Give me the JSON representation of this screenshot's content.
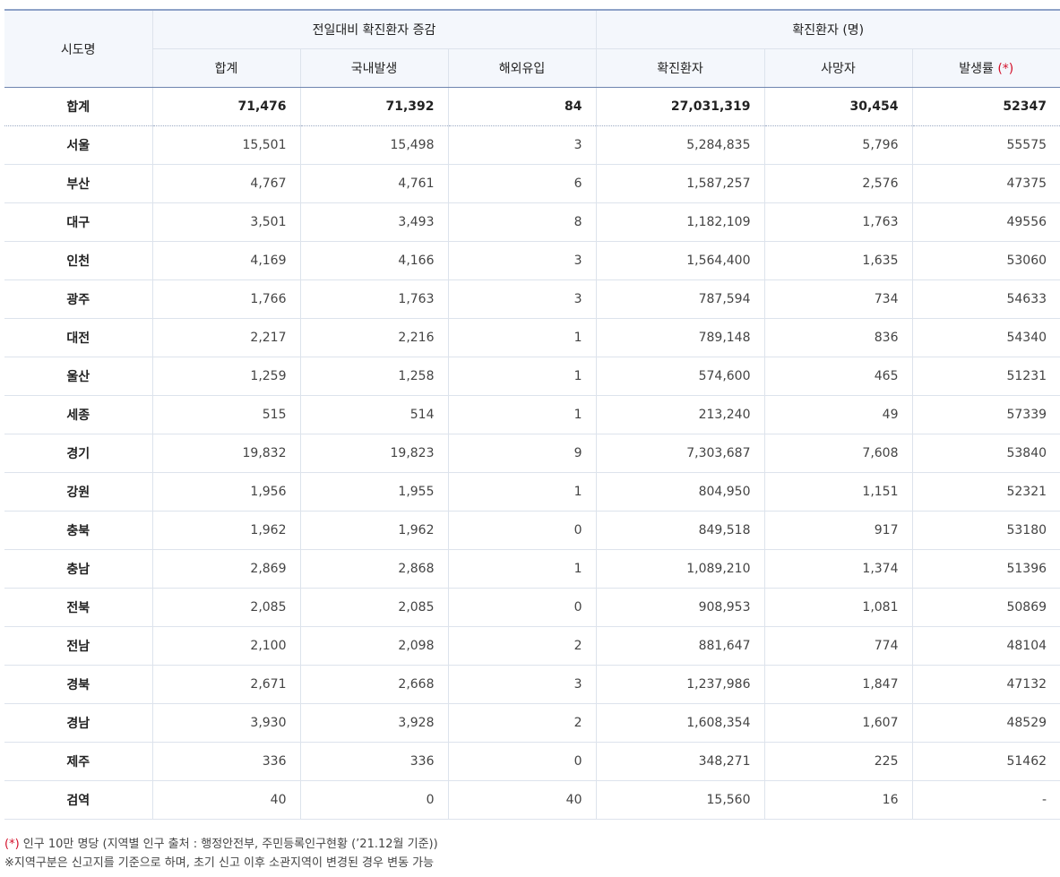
{
  "header": {
    "region": "시도명",
    "group_change": "전일대비 확진환자 증감",
    "group_confirmed": "확진환자 (명)",
    "sum": "합계",
    "domestic": "국내발생",
    "imported": "해외유입",
    "confirmed": "확진환자",
    "deaths": "사망자",
    "incidence": "발생률",
    "incidence_mark": "(*)"
  },
  "total": {
    "region": "합계",
    "sum": "71,476",
    "domestic": "71,392",
    "imported": "84",
    "confirmed": "27,031,319",
    "deaths": "30,454",
    "incidence": "52347"
  },
  "rows": [
    {
      "region": "서울",
      "sum": "15,501",
      "domestic": "15,498",
      "imported": "3",
      "confirmed": "5,284,835",
      "deaths": "5,796",
      "incidence": "55575"
    },
    {
      "region": "부산",
      "sum": "4,767",
      "domestic": "4,761",
      "imported": "6",
      "confirmed": "1,587,257",
      "deaths": "2,576",
      "incidence": "47375"
    },
    {
      "region": "대구",
      "sum": "3,501",
      "domestic": "3,493",
      "imported": "8",
      "confirmed": "1,182,109",
      "deaths": "1,763",
      "incidence": "49556"
    },
    {
      "region": "인천",
      "sum": "4,169",
      "domestic": "4,166",
      "imported": "3",
      "confirmed": "1,564,400",
      "deaths": "1,635",
      "incidence": "53060"
    },
    {
      "region": "광주",
      "sum": "1,766",
      "domestic": "1,763",
      "imported": "3",
      "confirmed": "787,594",
      "deaths": "734",
      "incidence": "54633"
    },
    {
      "region": "대전",
      "sum": "2,217",
      "domestic": "2,216",
      "imported": "1",
      "confirmed": "789,148",
      "deaths": "836",
      "incidence": "54340"
    },
    {
      "region": "울산",
      "sum": "1,259",
      "domestic": "1,258",
      "imported": "1",
      "confirmed": "574,600",
      "deaths": "465",
      "incidence": "51231"
    },
    {
      "region": "세종",
      "sum": "515",
      "domestic": "514",
      "imported": "1",
      "confirmed": "213,240",
      "deaths": "49",
      "incidence": "57339"
    },
    {
      "region": "경기",
      "sum": "19,832",
      "domestic": "19,823",
      "imported": "9",
      "confirmed": "7,303,687",
      "deaths": "7,608",
      "incidence": "53840"
    },
    {
      "region": "강원",
      "sum": "1,956",
      "domestic": "1,955",
      "imported": "1",
      "confirmed": "804,950",
      "deaths": "1,151",
      "incidence": "52321"
    },
    {
      "region": "충북",
      "sum": "1,962",
      "domestic": "1,962",
      "imported": "0",
      "confirmed": "849,518",
      "deaths": "917",
      "incidence": "53180"
    },
    {
      "region": "충남",
      "sum": "2,869",
      "domestic": "2,868",
      "imported": "1",
      "confirmed": "1,089,210",
      "deaths": "1,374",
      "incidence": "51396"
    },
    {
      "region": "전북",
      "sum": "2,085",
      "domestic": "2,085",
      "imported": "0",
      "confirmed": "908,953",
      "deaths": "1,081",
      "incidence": "50869"
    },
    {
      "region": "전남",
      "sum": "2,100",
      "domestic": "2,098",
      "imported": "2",
      "confirmed": "881,647",
      "deaths": "774",
      "incidence": "48104"
    },
    {
      "region": "경북",
      "sum": "2,671",
      "domestic": "2,668",
      "imported": "3",
      "confirmed": "1,237,986",
      "deaths": "1,847",
      "incidence": "47132"
    },
    {
      "region": "경남",
      "sum": "3,930",
      "domestic": "3,928",
      "imported": "2",
      "confirmed": "1,608,354",
      "deaths": "1,607",
      "incidence": "48529"
    },
    {
      "region": "제주",
      "sum": "336",
      "domestic": "336",
      "imported": "0",
      "confirmed": "348,271",
      "deaths": "225",
      "incidence": "51462"
    },
    {
      "region": "검역",
      "sum": "40",
      "domestic": "0",
      "imported": "40",
      "confirmed": "15,560",
      "deaths": "16",
      "incidence": "-"
    }
  ],
  "notes": {
    "mark": "(*)",
    "note1": " 인구 10만 명당 (지역별 인구 출처 : 행정안전부, 주민등록인구현황 (’21.12월 기준))",
    "note2": "※지역구분은 신고지를 기준으로 하며, 초기 신고 이후 소관지역이 변경된 경우 변동 가능"
  },
  "colors": {
    "accent_red": "#d3102a",
    "header_bg": "#f4f7fc",
    "header_top_border": "#8ea2c8"
  }
}
